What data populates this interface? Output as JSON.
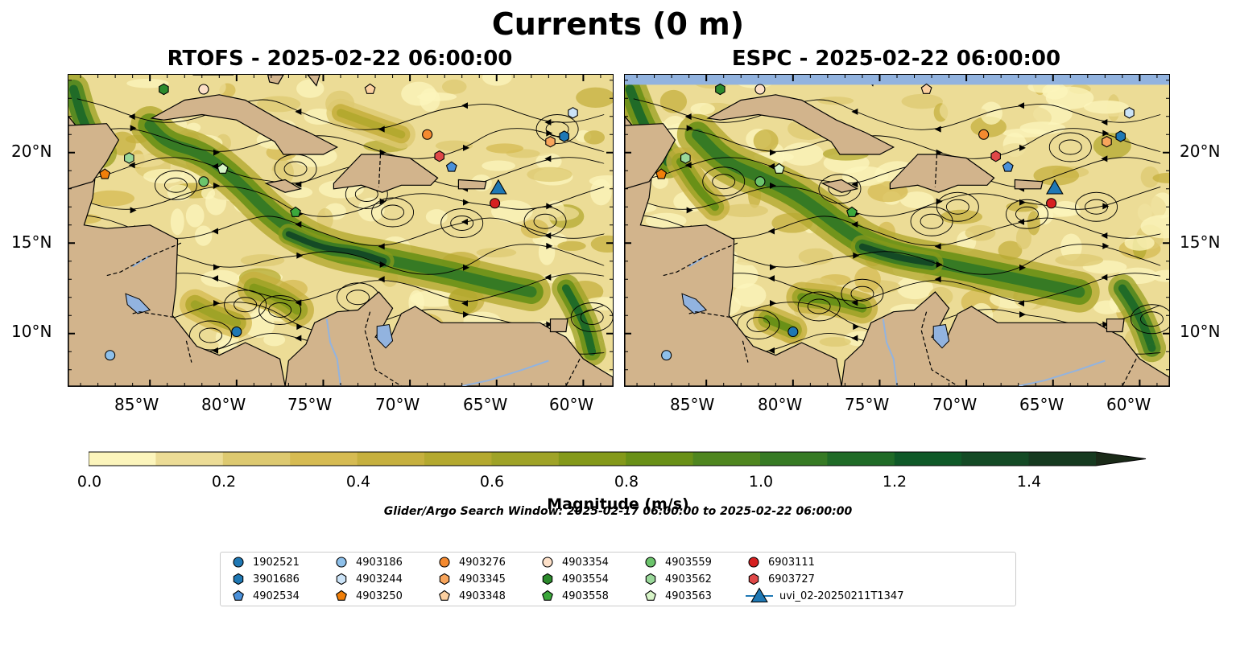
{
  "figure": {
    "title": "Currents (0 m)",
    "panels": [
      {
        "id": "rtofs",
        "title": "RTOFS - 2025-02-22 06:00:00"
      },
      {
        "id": "espc",
        "title": "ESPC - 2025-02-22 06:00:00"
      }
    ],
    "longitude_ticks": [
      "85°W",
      "80°W",
      "75°W",
      "70°W",
      "65°W",
      "60°W"
    ],
    "latitude_ticks": [
      "20°N",
      "15°N",
      "10°N"
    ],
    "map_extent": {
      "lon": [
        -89.7,
        -58.3
      ],
      "lat": [
        7.1,
        24.3
      ]
    },
    "colors": {
      "land": "#d2b48c",
      "lake": "#92b3df",
      "border": "#000000"
    }
  },
  "colorbar": {
    "label": "Magnitude (m/s)",
    "ticks": [
      "0.0",
      "0.2",
      "0.4",
      "0.6",
      "0.8",
      "1.0",
      "1.2",
      "1.4"
    ],
    "range": [
      0.0,
      1.5
    ],
    "extend": "max",
    "colors": [
      "#fcf5bc",
      "#ecdc96",
      "#ddc970",
      "#d6bb52",
      "#c6b03e",
      "#b4a92f",
      "#9fa327",
      "#84991a",
      "#699017",
      "#4f861f",
      "#367a24",
      "#206b27",
      "#0f5928",
      "#144a25",
      "#163a20",
      "#1a2a18"
    ]
  },
  "search_window": "Glider/Argo Search Window: 2025-02-17 06:00:00 to 2025-02-22 06:00:00",
  "legend": [
    {
      "id": "1902521",
      "marker": "circle",
      "color": "#1f78b4"
    },
    {
      "id": "3901686",
      "marker": "hexagon",
      "color": "#1f78b4"
    },
    {
      "id": "4902534",
      "marker": "pentagon",
      "color": "#4a90d9"
    },
    {
      "id": "4903186",
      "marker": "circle",
      "color": "#8ec0ea"
    },
    {
      "id": "4903244",
      "marker": "hexagon",
      "color": "#cbe3f7"
    },
    {
      "id": "4903250",
      "marker": "pentagon",
      "color": "#f07f0a"
    },
    {
      "id": "4903276",
      "marker": "circle",
      "color": "#f48a30"
    },
    {
      "id": "4903345",
      "marker": "hexagon",
      "color": "#f8a55c"
    },
    {
      "id": "4903348",
      "marker": "pentagon",
      "color": "#fcd0a0"
    },
    {
      "id": "4903354",
      "marker": "circle",
      "color": "#fde0c8"
    },
    {
      "id": "4903554",
      "marker": "hexagon",
      "color": "#2c8a2c"
    },
    {
      "id": "4903558",
      "marker": "pentagon",
      "color": "#3ca83c"
    },
    {
      "id": "4903559",
      "marker": "circle",
      "color": "#6cc46c"
    },
    {
      "id": "4903562",
      "marker": "hexagon",
      "color": "#9ad89a"
    },
    {
      "id": "4903563",
      "marker": "pentagon",
      "color": "#d8f5c8"
    },
    {
      "id": "6903111",
      "marker": "circle",
      "color": "#d62020"
    },
    {
      "id": "6903727",
      "marker": "hexagon",
      "color": "#e04848"
    },
    {
      "id": "uvi_02-20250211T1347",
      "marker": "triangle",
      "color": "#1f78b4"
    }
  ],
  "platforms": [
    {
      "id": "4903186",
      "lon": -87.3,
      "lat": 8.8
    },
    {
      "id": "1902521",
      "lon": -80.0,
      "lat": 10.1
    },
    {
      "id": "4903559",
      "lon": -81.9,
      "lat": 18.4
    },
    {
      "id": "4903563",
      "lon": -80.8,
      "lat": 19.1
    },
    {
      "id": "4903562",
      "lon": -86.2,
      "lat": 19.7
    },
    {
      "id": "4903250",
      "lon": -87.6,
      "lat": 18.8
    },
    {
      "id": "4903554",
      "lon": -84.2,
      "lat": 23.5
    },
    {
      "id": "4903354",
      "lon": -81.9,
      "lat": 23.5
    },
    {
      "id": "4903348",
      "lon": -72.3,
      "lat": 23.5
    },
    {
      "id": "4903558",
      "lon": -76.6,
      "lat": 16.7
    },
    {
      "id": "4903276",
      "lon": -69.0,
      "lat": 21.0
    },
    {
      "id": "6903727",
      "lon": -68.3,
      "lat": 19.8
    },
    {
      "id": "4902534",
      "lon": -67.6,
      "lat": 19.2
    },
    {
      "id": "6903111",
      "lon": -65.1,
      "lat": 17.2
    },
    {
      "id": "uvi_02-20250211T1347",
      "lon": -64.9,
      "lat": 18.1
    },
    {
      "id": "4903345",
      "lon": -61.9,
      "lat": 20.6
    },
    {
      "id": "3901686",
      "lon": -61.1,
      "lat": 20.9
    },
    {
      "id": "4903244",
      "lon": -60.6,
      "lat": 22.2
    }
  ]
}
